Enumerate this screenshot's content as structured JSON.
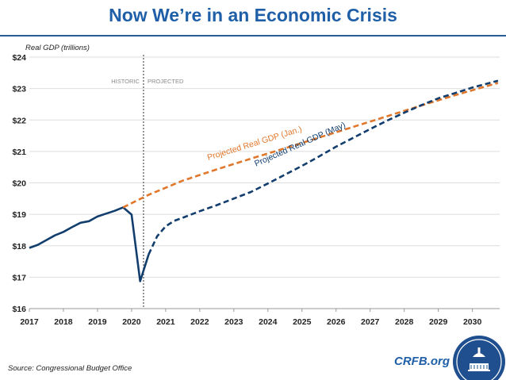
{
  "title": "Now We’re in an Economic Crisis",
  "source": "Source: Congressional Budget Office",
  "brand": "CRFB.org",
  "colors": {
    "title": "#1f5fa8",
    "historic": "#123e6e",
    "jan": "#e0772b",
    "may": "#123e6e",
    "grid": "#dedede"
  },
  "chart_data": {
    "type": "line",
    "title": "Now We’re in an Economic Crisis",
    "ylabel": "Real GDP (trillions)",
    "xlabel": "",
    "xlim": [
      2017,
      2030.8
    ],
    "ylim": [
      16,
      24
    ],
    "x_ticks": [
      "2017",
      "2018",
      "2019",
      "2020",
      "2021",
      "2022",
      "2023",
      "2024",
      "2025",
      "2026",
      "2027",
      "2028",
      "2029",
      "2030"
    ],
    "y_ticks": [
      "$16",
      "$17",
      "$18",
      "$19",
      "$20",
      "$21",
      "$22",
      "$23",
      "$24"
    ],
    "divider": {
      "x": 2020.35,
      "left_label": "HISTORIC",
      "right_label": "PROJECTED"
    },
    "series": [
      {
        "name": "Historic Real GDP",
        "style": "solid",
        "points": [
          [
            2017,
            17.93
          ],
          [
            2017.25,
            18.03
          ],
          [
            2017.5,
            18.18
          ],
          [
            2017.75,
            18.33
          ],
          [
            2018,
            18.44
          ],
          [
            2018.25,
            18.59
          ],
          [
            2018.5,
            18.73
          ],
          [
            2018.75,
            18.78
          ],
          [
            2019,
            18.93
          ],
          [
            2019.25,
            19.02
          ],
          [
            2019.5,
            19.11
          ],
          [
            2019.75,
            19.22
          ],
          [
            2020,
            18.99
          ],
          [
            2020.25,
            16.87
          ],
          [
            2020.5,
            17.72
          ]
        ]
      },
      {
        "name": "Projected Real GDP (Jan.)",
        "label": "Projected Real GDP (Jan.)",
        "style": "dashed",
        "points": [
          [
            2019.75,
            19.22
          ],
          [
            2020.5,
            19.62
          ],
          [
            2021.5,
            20.07
          ],
          [
            2022.5,
            20.43
          ],
          [
            2023.5,
            20.77
          ],
          [
            2024.5,
            21.1
          ],
          [
            2025.5,
            21.44
          ],
          [
            2026.5,
            21.78
          ],
          [
            2027.5,
            22.12
          ],
          [
            2028.5,
            22.46
          ],
          [
            2029.5,
            22.79
          ],
          [
            2030.75,
            23.18
          ]
        ]
      },
      {
        "name": "Projected Real GDP (May)",
        "label": "Projected Real GDP (May)",
        "style": "dashed",
        "points": [
          [
            2020.5,
            17.72
          ],
          [
            2020.75,
            18.3
          ],
          [
            2021,
            18.62
          ],
          [
            2021.25,
            18.79
          ],
          [
            2021.5,
            18.89
          ],
          [
            2022,
            19.1
          ],
          [
            2022.5,
            19.29
          ],
          [
            2023,
            19.5
          ],
          [
            2023.5,
            19.71
          ],
          [
            2024,
            19.98
          ],
          [
            2024.5,
            20.26
          ],
          [
            2025,
            20.54
          ],
          [
            2025.5,
            20.84
          ],
          [
            2026,
            21.15
          ],
          [
            2026.5,
            21.43
          ],
          [
            2027,
            21.71
          ],
          [
            2027.5,
            21.98
          ],
          [
            2028,
            22.23
          ],
          [
            2028.5,
            22.47
          ],
          [
            2029,
            22.69
          ],
          [
            2029.5,
            22.86
          ],
          [
            2030,
            23.03
          ],
          [
            2030.75,
            23.25
          ]
        ]
      }
    ]
  }
}
